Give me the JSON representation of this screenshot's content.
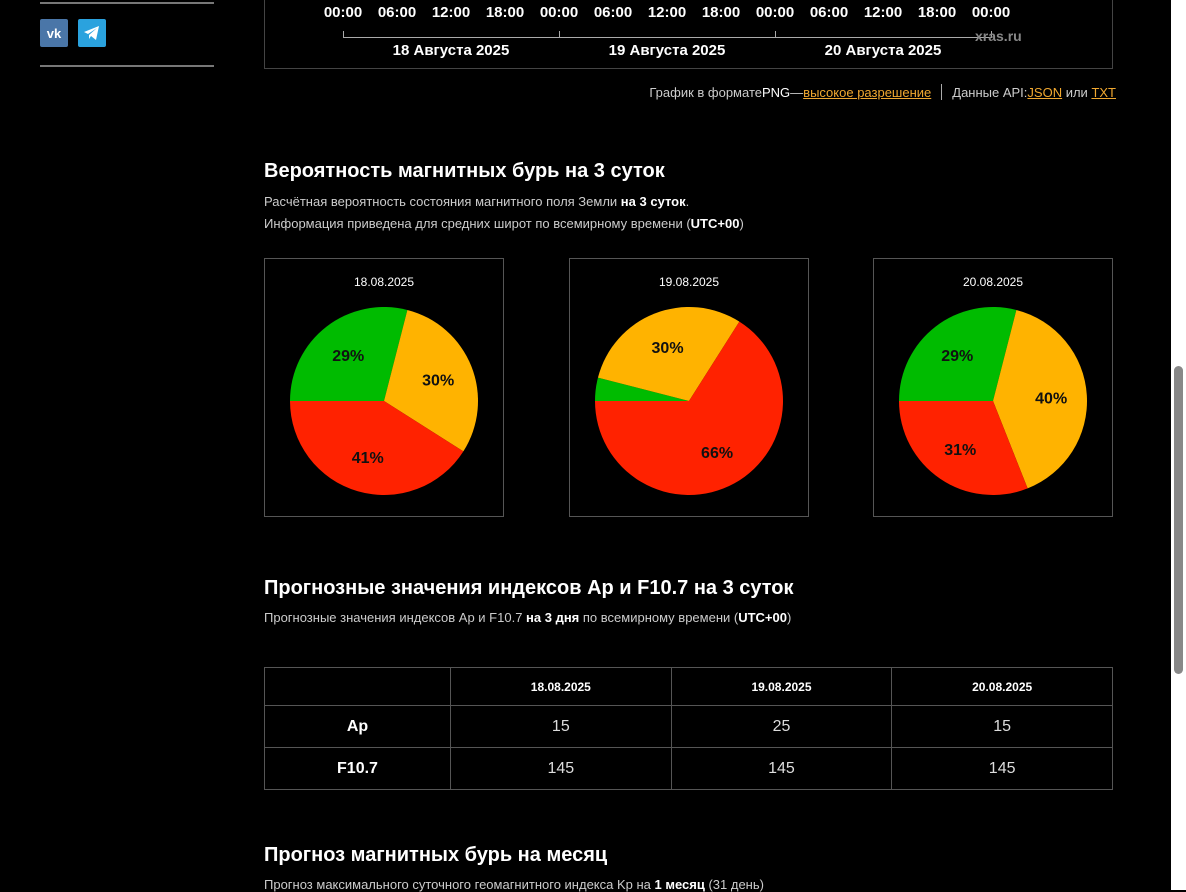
{
  "sidebar": {
    "social": [
      {
        "name": "vk"
      },
      {
        "name": "telegram"
      }
    ]
  },
  "timeline": {
    "times": [
      "00:00",
      "06:00",
      "12:00",
      "18:00",
      "00:00",
      "06:00",
      "12:00",
      "18:00",
      "00:00",
      "06:00",
      "12:00",
      "18:00",
      "00:00"
    ],
    "days": [
      "18 Августа 2025",
      "19 Августа 2025",
      "20 Августа 2025"
    ],
    "watermark": "xras.ru"
  },
  "png_line": {
    "prefix": "График в формате ",
    "png": "PNG",
    "dash": " — ",
    "hires": "высокое разрешение",
    "api_label": "Данные API: ",
    "json": "JSON",
    "or": " или ",
    "txt": "TXT"
  },
  "storm_section": {
    "title": "Вероятность магнитных бурь на 3 суток",
    "desc1_a": "Расчётная вероятность состояния магнитного поля Земли ",
    "desc1_b": "на 3 суток",
    "desc1_c": ".",
    "desc2_a": "Информация приведена для средних широт по всемирному времени (",
    "desc2_b": "UTC+00",
    "desc2_c": ")"
  },
  "pies": [
    {
      "date": "18.08.2025",
      "slices": [
        {
          "color": "#00bb00",
          "value": 29,
          "label": "29%"
        },
        {
          "color": "#ffb300",
          "value": 30,
          "label": "30%"
        },
        {
          "color": "#ff2200",
          "value": 41,
          "label": "41%"
        }
      ]
    },
    {
      "date": "19.08.2025",
      "slices": [
        {
          "color": "#00bb00",
          "value": 4,
          "label": ""
        },
        {
          "color": "#ffb300",
          "value": 30,
          "label": "30%"
        },
        {
          "color": "#ff2200",
          "value": 66,
          "label": "66%"
        }
      ]
    },
    {
      "date": "20.08.2025",
      "slices": [
        {
          "color": "#00bb00",
          "value": 29,
          "label": "29%"
        },
        {
          "color": "#ffb300",
          "value": 40,
          "label": "40%"
        },
        {
          "color": "#ff2200",
          "value": 31,
          "label": "31%"
        }
      ]
    }
  ],
  "index_section": {
    "title": "Прогнозные значения индексов Ap и F10.7 на 3 суток",
    "desc_a": "Прогнозные значения индексов Ap и F10.7 ",
    "desc_b": "на 3 дня",
    "desc_c": " по всемирному времени (",
    "desc_d": "UTC+00",
    "desc_e": ")",
    "table": {
      "headers": [
        "18.08.2025",
        "19.08.2025",
        "20.08.2025"
      ],
      "rows": [
        {
          "label": "Ap",
          "values": [
            "15",
            "25",
            "15"
          ]
        },
        {
          "label": "F10.7",
          "values": [
            "145",
            "145",
            "145"
          ]
        }
      ]
    }
  },
  "month_section": {
    "title": "Прогноз магнитных бурь на месяц",
    "desc_a": "Прогноз максимального суточного геомагнитного индекса Kp на ",
    "desc_b": "1 месяц",
    "desc_c": " (31 день)"
  }
}
